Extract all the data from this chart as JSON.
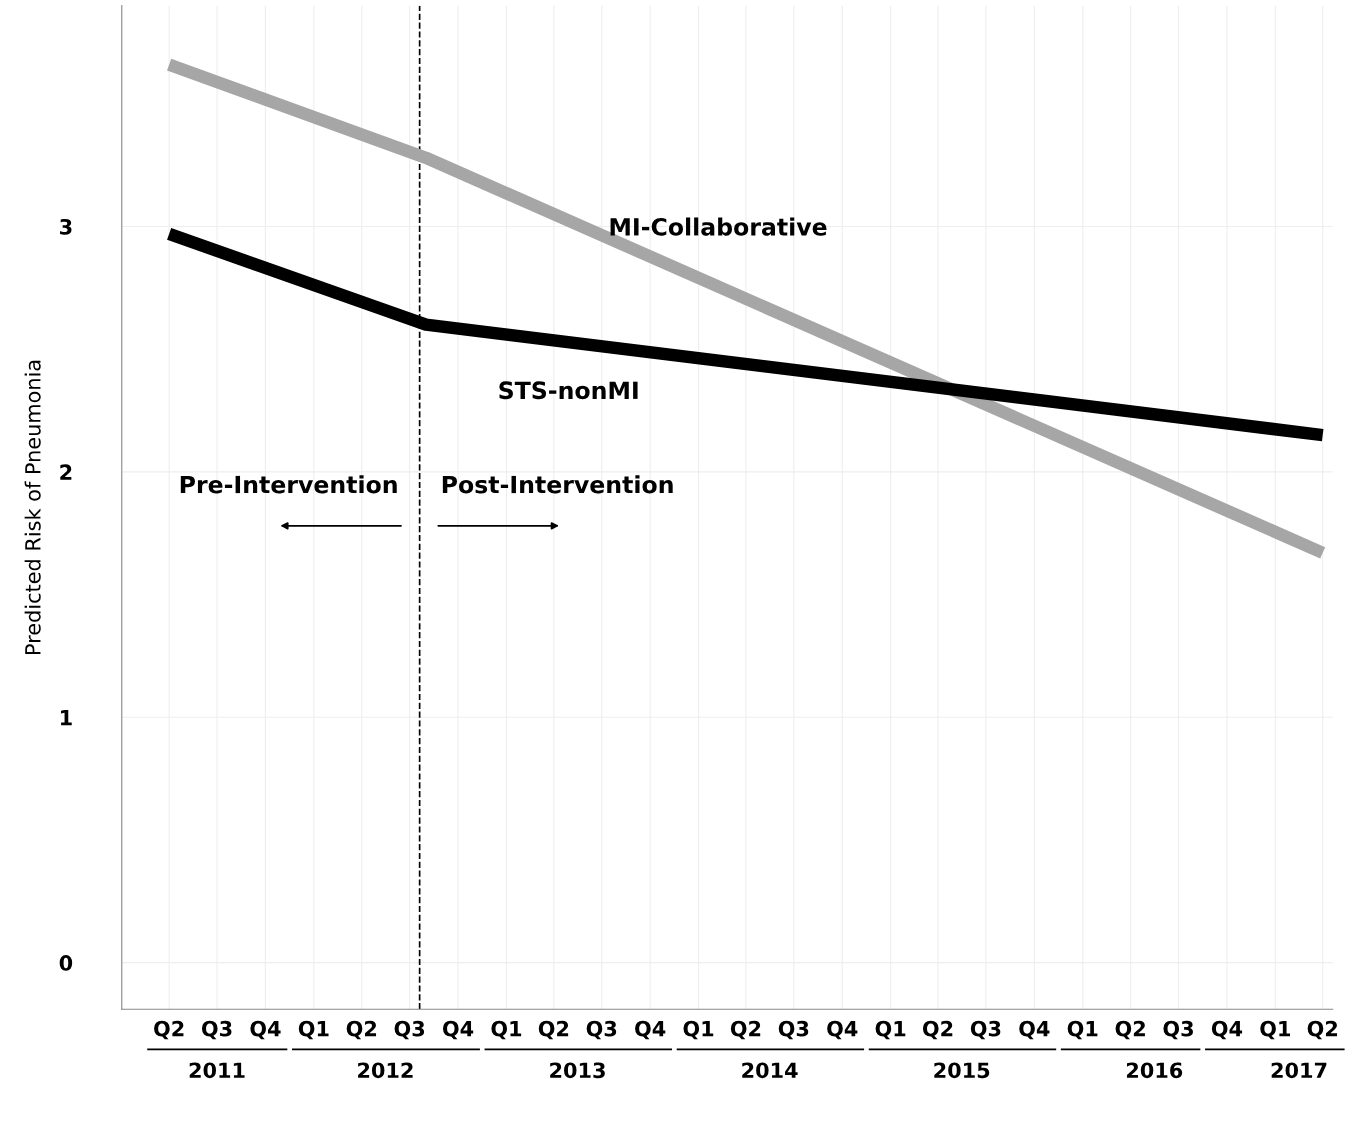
{
  "chart_data": {
    "type": "line",
    "ylabel": "Predicted Risk of Pneumonia",
    "series": [
      {
        "name": "MI-Collaborative",
        "color": "#a6a6a6",
        "x": [
          "2011-04-01",
          "2012-08-01",
          "2017-04-01"
        ],
        "values": [
          3.66,
          3.28,
          1.67
        ]
      },
      {
        "name": "STS-nonMI",
        "color": "#000000",
        "x": [
          "2011-04-01",
          "2012-08-01",
          "2017-04-01"
        ],
        "values": [
          2.97,
          2.6,
          2.15
        ]
      }
    ],
    "xlim": [
      "2011-01-01",
      "2017-04-20"
    ],
    "ylim": [
      -0.19,
      3.9
    ],
    "yticks": [
      0,
      1,
      2,
      3
    ],
    "xticks": [
      {
        "value": "2011-04-01",
        "label": "Q2"
      },
      {
        "value": "2011-07-01",
        "label": "Q3"
      },
      {
        "value": "2011-10-01",
        "label": "Q4"
      },
      {
        "value": "2012-01-01",
        "label": "Q1"
      },
      {
        "value": "2012-04-01",
        "label": "Q2"
      },
      {
        "value": "2012-07-01",
        "label": "Q3"
      },
      {
        "value": "2012-10-01",
        "label": "Q4"
      },
      {
        "value": "2013-01-01",
        "label": "Q1"
      },
      {
        "value": "2013-04-01",
        "label": "Q2"
      },
      {
        "value": "2013-07-01",
        "label": "Q3"
      },
      {
        "value": "2013-10-01",
        "label": "Q4"
      },
      {
        "value": "2014-01-01",
        "label": "Q1"
      },
      {
        "value": "2014-04-01",
        "label": "Q2"
      },
      {
        "value": "2014-07-01",
        "label": "Q3"
      },
      {
        "value": "2014-10-01",
        "label": "Q4"
      },
      {
        "value": "2015-01-01",
        "label": "Q1"
      },
      {
        "value": "2015-04-01",
        "label": "Q2"
      },
      {
        "value": "2015-07-01",
        "label": "Q3"
      },
      {
        "value": "2015-10-01",
        "label": "Q4"
      },
      {
        "value": "2016-01-01",
        "label": "Q1"
      },
      {
        "value": "2016-04-01",
        "label": "Q2"
      },
      {
        "value": "2016-07-01",
        "label": "Q3"
      },
      {
        "value": "2016-10-01",
        "label": "Q4"
      },
      {
        "value": "2017-01-01",
        "label": "Q1"
      },
      {
        "value": "2017-04-01",
        "label": "Q2"
      }
    ],
    "x2lim": [
      "2011-01-01",
      "2017-04-20"
    ],
    "x2ticks": [
      {
        "value": "2011-07-01",
        "label": "2011"
      },
      {
        "value": "2012-05-16",
        "label": "2012"
      },
      {
        "value": "2013-05-16",
        "label": "2013"
      },
      {
        "value": "2014-05-16",
        "label": "2014"
      },
      {
        "value": "2015-05-16",
        "label": "2015"
      },
      {
        "value": "2016-05-16",
        "label": "2016"
      },
      {
        "value": "2017-02-15",
        "label": "2017"
      }
    ],
    "ref_lines": [
      {
        "axis": "x",
        "value": "2012-07-20",
        "color": "#000000",
        "line_style": "dashed"
      }
    ],
    "annotations": [
      "Pre-Intervention",
      "Post-Intervention"
    ],
    "grid": true,
    "line_style": "solid",
    "marker": "none",
    "legend": false
  }
}
